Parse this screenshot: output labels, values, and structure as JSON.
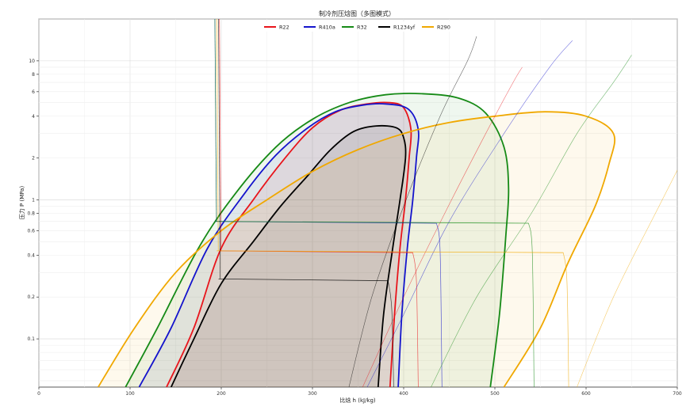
{
  "chart_data": {
    "type": "line",
    "title": "制冷剂压焓图（多图模式）",
    "xlabel": "比焓 h (kJ/kg)",
    "ylabel": "压力 P (MPa)",
    "xlim": [
      0,
      700
    ],
    "ylim": [
      0.045,
      20
    ],
    "y_scale": "log",
    "x_ticks": [
      0,
      100,
      200,
      300,
      400,
      500,
      600,
      700
    ],
    "y_ticks": [
      0.1,
      0.2,
      0.4,
      0.6,
      0.8,
      1,
      2,
      4,
      6,
      8,
      10
    ],
    "grid": true,
    "legend_position": "top-center",
    "series": [
      {
        "name": "R22",
        "color": "#e8141b",
        "dome": [
          [
            140,
            0.045
          ],
          [
            170,
            0.12
          ],
          [
            200,
            0.45
          ],
          [
            235,
            1.0
          ],
          [
            270,
            2.0
          ],
          [
            300,
            3.3
          ],
          [
            330,
            4.4
          ],
          [
            360,
            4.9
          ],
          [
            385,
            5.0
          ],
          [
            400,
            4.6
          ],
          [
            408,
            3.2
          ],
          [
            406,
            2.0
          ],
          [
            402,
            1.0
          ],
          [
            396,
            0.45
          ],
          [
            390,
            0.15
          ],
          [
            385,
            0.045
          ]
        ],
        "isobars": [
          {
            "p": 0.43,
            "h_liquid": 198,
            "h_vapor": 400,
            "h_start": 198,
            "h_end": 410,
            "drop_to": 0.045
          }
        ],
        "isentrope": [
          [
            355,
            0.045
          ],
          [
            400,
            0.2
          ],
          [
            445,
            0.8
          ],
          [
            490,
            3
          ],
          [
            520,
            7
          ],
          [
            530,
            9
          ]
        ]
      },
      {
        "name": "R410a",
        "color": "#1414cc",
        "dome": [
          [
            110,
            0.045
          ],
          [
            145,
            0.12
          ],
          [
            185,
            0.45
          ],
          [
            225,
            1.1
          ],
          [
            260,
            2.1
          ],
          [
            295,
            3.3
          ],
          [
            325,
            4.3
          ],
          [
            355,
            4.8
          ],
          [
            380,
            4.9
          ],
          [
            405,
            4.5
          ],
          [
            416,
            3.2
          ],
          [
            414,
            2.0
          ],
          [
            410,
            1.0
          ],
          [
            404,
            0.45
          ],
          [
            398,
            0.15
          ],
          [
            394,
            0.045
          ]
        ],
        "isobars": [
          {
            "p": 0.7,
            "h_liquid": 193,
            "h_vapor": 418,
            "h_start": 193,
            "h_end": 436,
            "drop_to": 0.045
          }
        ],
        "isentrope": [
          [
            360,
            0.045
          ],
          [
            400,
            0.15
          ],
          [
            450,
            0.7
          ],
          [
            510,
            3
          ],
          [
            560,
            9
          ],
          [
            585,
            14
          ]
        ]
      },
      {
        "name": "R32",
        "color": "#168a16",
        "dome": [
          [
            95,
            0.045
          ],
          [
            130,
            0.12
          ],
          [
            175,
            0.45
          ],
          [
            215,
            1.1
          ],
          [
            260,
            2.4
          ],
          [
            300,
            3.8
          ],
          [
            340,
            5.0
          ],
          [
            380,
            5.7
          ],
          [
            420,
            5.8
          ],
          [
            460,
            5.4
          ],
          [
            490,
            4.2
          ],
          [
            510,
            2.4
          ],
          [
            515,
            1.2
          ],
          [
            512,
            0.55
          ],
          [
            505,
            0.15
          ],
          [
            495,
            0.045
          ]
        ],
        "isobars": [
          {
            "p": 0.7,
            "h_liquid": 193,
            "h_vapor": 515,
            "h_start": 193,
            "h_end": 537,
            "drop_to": 0.045
          }
        ],
        "isentrope": [
          [
            430,
            0.045
          ],
          [
            480,
            0.2
          ],
          [
            540,
            0.8
          ],
          [
            590,
            3
          ],
          [
            630,
            7
          ],
          [
            650,
            11
          ]
        ]
      },
      {
        "name": "R1234yf",
        "color": "#000000",
        "dome": [
          [
            145,
            0.045
          ],
          [
            170,
            0.1
          ],
          [
            200,
            0.25
          ],
          [
            235,
            0.5
          ],
          [
            265,
            0.9
          ],
          [
            295,
            1.5
          ],
          [
            320,
            2.3
          ],
          [
            345,
            3.1
          ],
          [
            370,
            3.4
          ],
          [
            392,
            3.3
          ],
          [
            400,
            2.8
          ],
          [
            402,
            2.0
          ],
          [
            396,
            1.0
          ],
          [
            388,
            0.45
          ],
          [
            378,
            0.15
          ],
          [
            372,
            0.045
          ]
        ],
        "isobars": [
          {
            "p": 0.27,
            "h_liquid": 197,
            "h_vapor": 383,
            "h_start": 197,
            "h_end": 383,
            "drop_to": 0.045
          }
        ],
        "isentrope": [
          [
            340,
            0.045
          ],
          [
            365,
            0.2
          ],
          [
            400,
            0.9
          ],
          [
            440,
            4
          ],
          [
            470,
            10
          ],
          [
            480,
            15
          ]
        ]
      },
      {
        "name": "R290",
        "color": "#f0a800",
        "dome": [
          [
            65,
            0.045
          ],
          [
            105,
            0.12
          ],
          [
            150,
            0.3
          ],
          [
            200,
            0.6
          ],
          [
            250,
            1.0
          ],
          [
            300,
            1.6
          ],
          [
            350,
            2.3
          ],
          [
            400,
            3.0
          ],
          [
            450,
            3.6
          ],
          [
            500,
            4.0
          ],
          [
            555,
            4.3
          ],
          [
            600,
            4.0
          ],
          [
            630,
            3.0
          ],
          [
            625,
            1.8
          ],
          [
            610,
            0.9
          ],
          [
            580,
            0.35
          ],
          [
            550,
            0.12
          ],
          [
            510,
            0.045
          ]
        ],
        "isobars": [
          {
            "p": 0.43,
            "h_liquid": 195,
            "h_vapor": 570,
            "h_start": 195,
            "h_end": 575,
            "drop_to": 0.045
          }
        ],
        "isentrope": [
          [
            590,
            0.045
          ],
          [
            630,
            0.2
          ],
          [
            680,
            0.9
          ],
          [
            730,
            4
          ],
          [
            760,
            10
          ]
        ]
      }
    ]
  }
}
